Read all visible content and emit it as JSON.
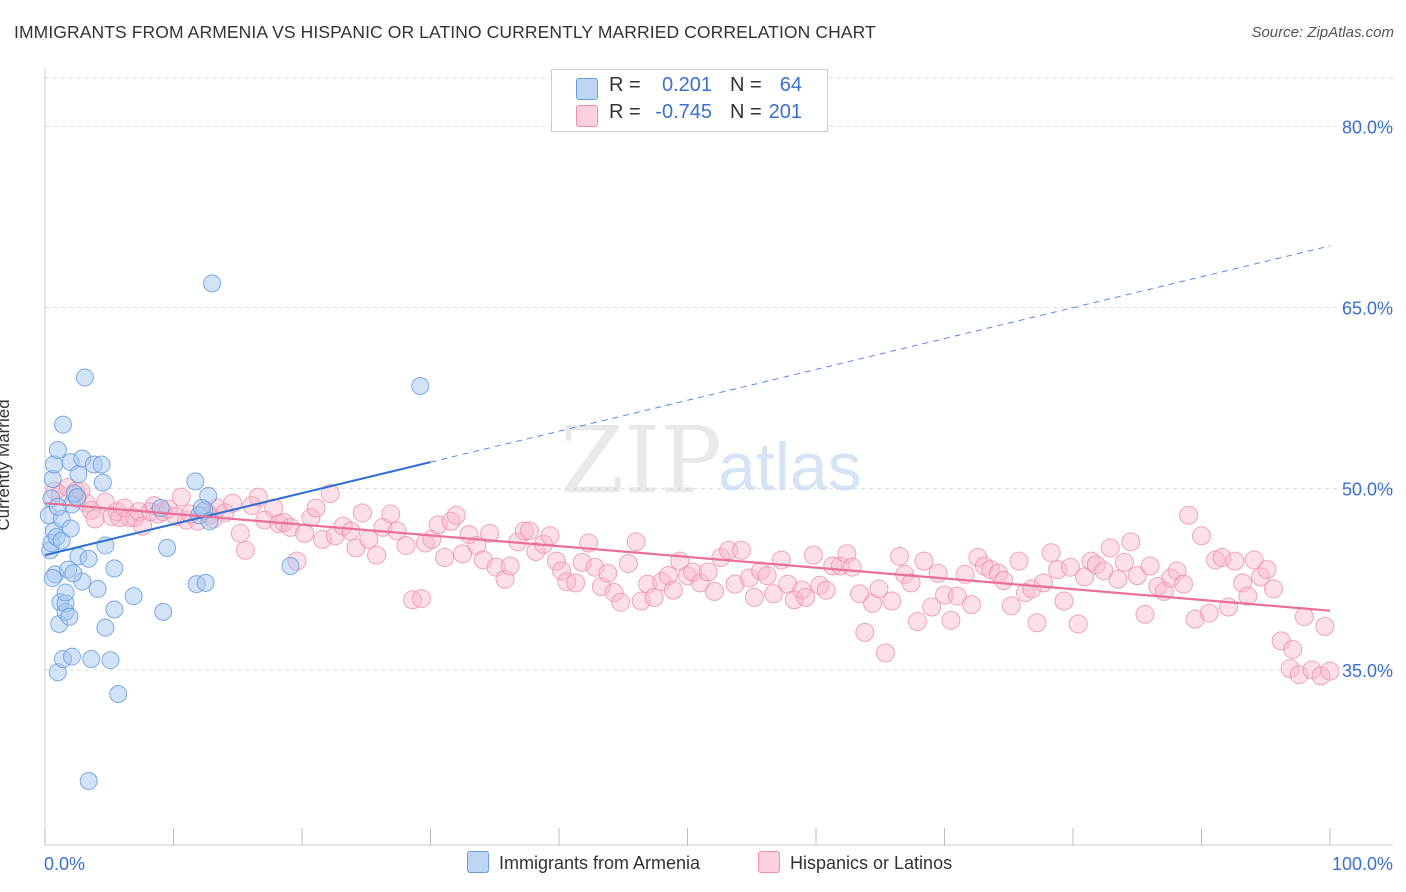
{
  "header": {
    "title": "IMMIGRANTS FROM ARMENIA VS HISPANIC OR LATINO CURRENTLY MARRIED CORRELATION CHART",
    "source": "Source: ZipAtlas.com"
  },
  "watermark": {
    "zip": "ZIP",
    "atlas": "atlas"
  },
  "legend_top": {
    "rows": [
      {
        "r_label": "R =",
        "r_value": "0.201",
        "n_label": "N =",
        "n_value": "64",
        "color": "#a8c8f0"
      },
      {
        "r_label": "R =",
        "r_value": "-0.745",
        "n_label": "N =",
        "n_value": "201",
        "color": "#f8b8cc"
      }
    ]
  },
  "legend_bottom": {
    "items": [
      {
        "label": "Immigrants from Armenia",
        "color": "#a8c8f0"
      },
      {
        "label": "Hispanics or Latinos",
        "color": "#f8b8cc"
      }
    ]
  },
  "colors": {
    "blue_fill": "#a8c8f0",
    "blue_stroke": "#6a9ee0",
    "blue_line": "#2f6fd6",
    "pink_fill": "#f8b8cc",
    "pink_stroke": "#ec90ac",
    "pink_line": "#e8709a",
    "tick_label": "#3a6fd0",
    "grid": "#dddddd"
  },
  "chart_data": {
    "type": "scatter",
    "title": "IMMIGRANTS FROM ARMENIA VS HISPANIC OR LATINO CURRENTLY MARRIED CORRELATION CHART",
    "xlabel": "",
    "ylabel": "Currently Married",
    "xlim": [
      0,
      100
    ],
    "ylim": [
      20.5,
      84
    ],
    "x_tick_labels": [
      "0.0%",
      "100.0%"
    ],
    "y_ticks": [
      35,
      50,
      65,
      80
    ],
    "y_tick_labels": [
      "35.0%",
      "50.0%",
      "65.0%",
      "80.0%"
    ],
    "grid": true,
    "legend_position": "top-center",
    "series": [
      {
        "name": "Immigrants from Armenia",
        "r": 0.201,
        "n": 64,
        "trend": {
          "x0": 0,
          "y0": 44.5,
          "x1": 30,
          "y1": 52.2,
          "extend_to_x": 100,
          "extend_y": 70.1
        },
        "points": [
          [
            0.3,
            47.8
          ],
          [
            0.4,
            44.9
          ],
          [
            0.5,
            45.5
          ],
          [
            0.5,
            49.2
          ],
          [
            0.6,
            50.8
          ],
          [
            0.7,
            46.5
          ],
          [
            0.7,
            52.0
          ],
          [
            0.8,
            42.9
          ],
          [
            0.9,
            46.0
          ],
          [
            1.0,
            34.8
          ],
          [
            1.0,
            53.2
          ],
          [
            1.1,
            38.8
          ],
          [
            1.2,
            40.6
          ],
          [
            1.3,
            47.5
          ],
          [
            1.3,
            45.7
          ],
          [
            1.4,
            55.3
          ],
          [
            1.4,
            35.9
          ],
          [
            1.6,
            39.8
          ],
          [
            1.6,
            40.5
          ],
          [
            1.6,
            41.4
          ],
          [
            1.8,
            43.3
          ],
          [
            1.9,
            39.4
          ],
          [
            2.0,
            52.2
          ],
          [
            2.0,
            46.7
          ],
          [
            2.1,
            48.7
          ],
          [
            2.1,
            36.1
          ],
          [
            2.3,
            49.6
          ],
          [
            2.5,
            49.3
          ],
          [
            2.6,
            51.2
          ],
          [
            2.6,
            44.4
          ],
          [
            2.9,
            52.5
          ],
          [
            2.9,
            42.3
          ],
          [
            3.1,
            59.2
          ],
          [
            3.4,
            44.2
          ],
          [
            3.4,
            25.8
          ],
          [
            3.6,
            35.9
          ],
          [
            3.8,
            52.0
          ],
          [
            4.1,
            41.7
          ],
          [
            4.4,
            52.0
          ],
          [
            4.5,
            50.5
          ],
          [
            4.7,
            45.3
          ],
          [
            4.7,
            38.5
          ],
          [
            5.1,
            35.8
          ],
          [
            5.4,
            43.4
          ],
          [
            5.4,
            40.0
          ],
          [
            5.7,
            33.0
          ],
          [
            6.9,
            41.1
          ],
          [
            9.0,
            48.4
          ],
          [
            9.2,
            39.8
          ],
          [
            9.5,
            45.1
          ],
          [
            11.7,
            50.6
          ],
          [
            11.8,
            42.1
          ],
          [
            12.0,
            47.8
          ],
          [
            12.4,
            48.2
          ],
          [
            12.5,
            42.2
          ],
          [
            12.7,
            49.4
          ],
          [
            13.0,
            67.0
          ],
          [
            29.2,
            58.5
          ],
          [
            19.1,
            43.6
          ],
          [
            12.2,
            48.4
          ],
          [
            1.0,
            48.5
          ],
          [
            2.2,
            43.0
          ],
          [
            0.6,
            42.6
          ],
          [
            12.8,
            47.3
          ]
        ]
      },
      {
        "name": "Hispanics or Latinos",
        "r": -0.745,
        "n": 201,
        "trend": {
          "x0": 0,
          "y0": 48.8,
          "x1": 100,
          "y1": 39.9
        },
        "points": [
          [
            0.8,
            49.8
          ],
          [
            1.2,
            49.5
          ],
          [
            1.8,
            50.1
          ],
          [
            2.4,
            49.8
          ],
          [
            2.5,
            49.2
          ],
          [
            2.8,
            49.8
          ],
          [
            3.2,
            48.8
          ],
          [
            3.6,
            48.2
          ],
          [
            3.9,
            47.5
          ],
          [
            4.7,
            48.9
          ],
          [
            5.2,
            47.7
          ],
          [
            5.6,
            48.1
          ],
          [
            5.8,
            47.6
          ],
          [
            6.2,
            48.4
          ],
          [
            6.6,
            47.6
          ],
          [
            7.0,
            47.6
          ],
          [
            7.3,
            48.1
          ],
          [
            7.6,
            46.9
          ],
          [
            8.2,
            48.1
          ],
          [
            8.5,
            48.6
          ],
          [
            8.8,
            47.9
          ],
          [
            9.2,
            48.1
          ],
          [
            9.6,
            48.3
          ],
          [
            10.2,
            47.7
          ],
          [
            10.6,
            49.3
          ],
          [
            11.0,
            47.4
          ],
          [
            11.3,
            47.9
          ],
          [
            11.9,
            47.3
          ],
          [
            12.5,
            48.2
          ],
          [
            12.8,
            47.8
          ],
          [
            13.1,
            47.5
          ],
          [
            13.4,
            48.4
          ],
          [
            14.0,
            48.0
          ],
          [
            14.6,
            48.8
          ],
          [
            15.2,
            46.3
          ],
          [
            15.6,
            44.9
          ],
          [
            16.1,
            48.6
          ],
          [
            16.6,
            49.3
          ],
          [
            17.1,
            47.4
          ],
          [
            17.8,
            48.4
          ],
          [
            18.2,
            47.1
          ],
          [
            18.6,
            47.2
          ],
          [
            19.1,
            46.8
          ],
          [
            19.6,
            44.0
          ],
          [
            20.2,
            46.3
          ],
          [
            20.7,
            47.6
          ],
          [
            21.1,
            48.4
          ],
          [
            21.6,
            45.8
          ],
          [
            22.2,
            49.6
          ],
          [
            22.6,
            46.1
          ],
          [
            23.2,
            46.9
          ],
          [
            23.8,
            46.5
          ],
          [
            24.2,
            45.1
          ],
          [
            24.7,
            48.0
          ],
          [
            25.2,
            45.8
          ],
          [
            25.8,
            44.5
          ],
          [
            26.3,
            46.8
          ],
          [
            26.9,
            47.9
          ],
          [
            27.4,
            46.5
          ],
          [
            28.1,
            45.3
          ],
          [
            28.6,
            40.8
          ],
          [
            29.3,
            40.9
          ],
          [
            29.6,
            45.5
          ],
          [
            30.1,
            45.8
          ],
          [
            30.6,
            47.0
          ],
          [
            31.1,
            44.3
          ],
          [
            31.6,
            47.3
          ],
          [
            32.0,
            47.8
          ],
          [
            32.5,
            44.6
          ],
          [
            33.0,
            46.2
          ],
          [
            33.6,
            45.3
          ],
          [
            34.1,
            44.1
          ],
          [
            34.6,
            46.3
          ],
          [
            35.1,
            43.5
          ],
          [
            35.8,
            42.5
          ],
          [
            36.2,
            43.6
          ],
          [
            36.8,
            45.6
          ],
          [
            37.3,
            46.5
          ],
          [
            37.7,
            46.5
          ],
          [
            38.2,
            44.8
          ],
          [
            38.8,
            45.4
          ],
          [
            39.3,
            46.1
          ],
          [
            39.8,
            44.0
          ],
          [
            40.2,
            43.2
          ],
          [
            40.6,
            42.3
          ],
          [
            41.3,
            42.2
          ],
          [
            41.8,
            43.9
          ],
          [
            42.3,
            45.5
          ],
          [
            42.8,
            43.5
          ],
          [
            43.3,
            41.9
          ],
          [
            43.8,
            43.0
          ],
          [
            44.3,
            41.4
          ],
          [
            44.8,
            40.6
          ],
          [
            45.4,
            43.8
          ],
          [
            46.0,
            45.6
          ],
          [
            46.4,
            40.7
          ],
          [
            46.9,
            42.1
          ],
          [
            47.4,
            41.0
          ],
          [
            48.0,
            42.3
          ],
          [
            48.5,
            42.8
          ],
          [
            48.9,
            41.6
          ],
          [
            49.4,
            44.0
          ],
          [
            50.0,
            42.8
          ],
          [
            50.4,
            43.1
          ],
          [
            51.0,
            42.2
          ],
          [
            51.6,
            43.1
          ],
          [
            52.1,
            41.5
          ],
          [
            52.6,
            44.3
          ],
          [
            53.2,
            44.9
          ],
          [
            53.7,
            42.1
          ],
          [
            54.2,
            44.9
          ],
          [
            54.8,
            42.6
          ],
          [
            55.2,
            41.0
          ],
          [
            55.7,
            43.2
          ],
          [
            56.2,
            42.8
          ],
          [
            56.7,
            41.3
          ],
          [
            57.3,
            44.1
          ],
          [
            57.8,
            42.1
          ],
          [
            58.3,
            40.8
          ],
          [
            58.9,
            41.6
          ],
          [
            59.2,
            41.0
          ],
          [
            59.8,
            44.5
          ],
          [
            60.3,
            42.0
          ],
          [
            60.8,
            41.6
          ],
          [
            61.3,
            43.6
          ],
          [
            61.9,
            43.6
          ],
          [
            62.4,
            44.6
          ],
          [
            62.8,
            43.5
          ],
          [
            63.4,
            41.3
          ],
          [
            63.8,
            38.1
          ],
          [
            64.4,
            40.5
          ],
          [
            64.9,
            41.7
          ],
          [
            65.4,
            36.4
          ],
          [
            65.9,
            40.7
          ],
          [
            66.5,
            44.4
          ],
          [
            66.9,
            42.9
          ],
          [
            67.4,
            42.2
          ],
          [
            67.9,
            39.0
          ],
          [
            68.4,
            44.0
          ],
          [
            69.0,
            40.2
          ],
          [
            69.5,
            43.0
          ],
          [
            70.0,
            41.2
          ],
          [
            70.5,
            39.1
          ],
          [
            71.0,
            41.1
          ],
          [
            71.6,
            42.9
          ],
          [
            72.1,
            40.4
          ],
          [
            72.6,
            44.3
          ],
          [
            73.1,
            43.6
          ],
          [
            73.6,
            43.3
          ],
          [
            74.2,
            43.0
          ],
          [
            74.6,
            42.4
          ],
          [
            75.2,
            40.3
          ],
          [
            75.8,
            44.0
          ],
          [
            76.3,
            41.4
          ],
          [
            76.8,
            41.7
          ],
          [
            77.2,
            38.9
          ],
          [
            77.7,
            42.2
          ],
          [
            78.3,
            44.7
          ],
          [
            78.8,
            43.3
          ],
          [
            79.3,
            40.7
          ],
          [
            79.8,
            43.5
          ],
          [
            80.4,
            38.8
          ],
          [
            80.9,
            42.7
          ],
          [
            81.4,
            44.0
          ],
          [
            81.8,
            43.7
          ],
          [
            82.4,
            43.2
          ],
          [
            82.9,
            45.1
          ],
          [
            83.5,
            42.5
          ],
          [
            84.0,
            43.9
          ],
          [
            84.5,
            45.6
          ],
          [
            85.0,
            42.8
          ],
          [
            85.6,
            39.6
          ],
          [
            86.0,
            43.6
          ],
          [
            86.6,
            41.9
          ],
          [
            87.1,
            41.5
          ],
          [
            87.6,
            42.6
          ],
          [
            88.1,
            43.2
          ],
          [
            88.6,
            42.1
          ],
          [
            89.0,
            47.8
          ],
          [
            89.5,
            39.2
          ],
          [
            90.0,
            46.1
          ],
          [
            90.6,
            39.7
          ],
          [
            91.1,
            44.1
          ],
          [
            91.6,
            44.3
          ],
          [
            92.1,
            40.2
          ],
          [
            92.6,
            44.0
          ],
          [
            93.2,
            42.2
          ],
          [
            93.6,
            41.1
          ],
          [
            94.1,
            44.1
          ],
          [
            94.6,
            42.7
          ],
          [
            95.1,
            43.3
          ],
          [
            95.6,
            41.7
          ],
          [
            96.2,
            37.4
          ],
          [
            97.1,
            36.7
          ],
          [
            96.9,
            35.1
          ],
          [
            97.6,
            34.6
          ],
          [
            98.0,
            39.4
          ],
          [
            98.6,
            35.0
          ],
          [
            99.3,
            34.5
          ],
          [
            99.6,
            38.6
          ],
          [
            100.0,
            34.9
          ]
        ]
      }
    ]
  }
}
